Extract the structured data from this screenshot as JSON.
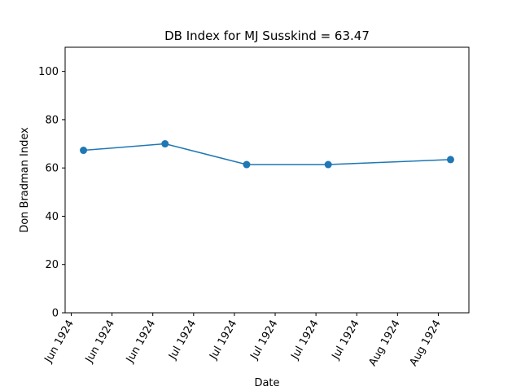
{
  "chart_data": {
    "type": "line",
    "title": "DB Index for MJ Susskind = 63.47",
    "xlabel": "Date",
    "ylabel": "Don Bradman Index",
    "ylim": [
      0,
      110
    ],
    "yticks": [
      0,
      20,
      40,
      60,
      80,
      100
    ],
    "xtick_labels": [
      "Jun 1924",
      "Jun 1924",
      "Jun 1924",
      "Jul 1924",
      "Jul 1924",
      "Jul 1924",
      "Jul 1924",
      "Jul 1924",
      "Aug 1924",
      "Aug 1924"
    ],
    "grid": false,
    "color": "#1f77b4",
    "series": [
      {
        "x": [
          "1924-06-04",
          "1924-06-24",
          "1924-07-14",
          "1924-08-03",
          "1924-09-02"
        ],
        "values": [
          67.3,
          70.0,
          61.4,
          61.4,
          63.47
        ]
      }
    ]
  }
}
